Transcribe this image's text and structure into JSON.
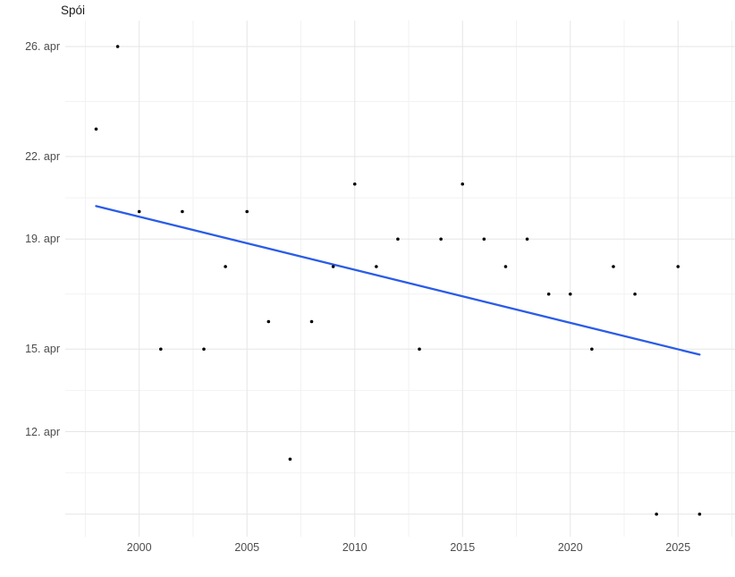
{
  "colors": {
    "background": "#FFFFFF",
    "trend_line": "#2B5CE7",
    "point": "#000000",
    "grid_major": "#E6E6E6",
    "grid_minor": "#F2F2F2",
    "axis_text": "#4D4D4D",
    "title_text": "#1A1A1A"
  },
  "chart_data": {
    "type": "scatter",
    "title": "Spói",
    "x": [
      1998,
      1999,
      2000,
      2001,
      2002,
      2003,
      2004,
      2005,
      2006,
      2007,
      2008,
      2009,
      2010,
      2011,
      2012,
      2013,
      2014,
      2015,
      2016,
      2017,
      2018,
      2019,
      2020,
      2021,
      2022,
      2023,
      2024,
      2025,
      2026
    ],
    "y_april_day": [
      23,
      26,
      20,
      15,
      20,
      15,
      18,
      20,
      16,
      11,
      16,
      18,
      21,
      18,
      19,
      15,
      19,
      21,
      19,
      18,
      19,
      17,
      17,
      15,
      18,
      17,
      9,
      18,
      9
    ],
    "y_tick_labels": [
      {
        "day": 26,
        "label": "26. apr"
      },
      {
        "day": 22,
        "label": "22. apr"
      },
      {
        "day": 19,
        "label": "19. apr"
      },
      {
        "day": 15,
        "label": "15. apr"
      },
      {
        "day": 12,
        "label": "12. apr"
      },
      {
        "day": 9,
        "label": ""
      }
    ],
    "y_minor_tick_days": [
      24,
      20.5,
      17,
      13.5,
      10.5
    ],
    "x_tick_labels": [
      {
        "year": 2000,
        "label": "2000"
      },
      {
        "year": 2005,
        "label": "2005"
      },
      {
        "year": 2010,
        "label": "2010"
      },
      {
        "year": 2015,
        "label": "2015"
      },
      {
        "year": 2020,
        "label": "2020"
      },
      {
        "year": 2025,
        "label": "2025"
      }
    ],
    "x_minor_ticks": [
      1997.5,
      2002.5,
      2007.5,
      2012.5,
      2017.5,
      2022.5,
      2027.5
    ],
    "trend_line": {
      "fit": "linear",
      "x1": 1998,
      "y1_april_day": 20.2,
      "x2": 2026,
      "y2_april_day": 14.8
    },
    "xlim": [
      1996.6,
      2027.5
    ],
    "ylim_april_day": [
      8.2,
      26.9
    ],
    "grid": true,
    "legend": false
  }
}
